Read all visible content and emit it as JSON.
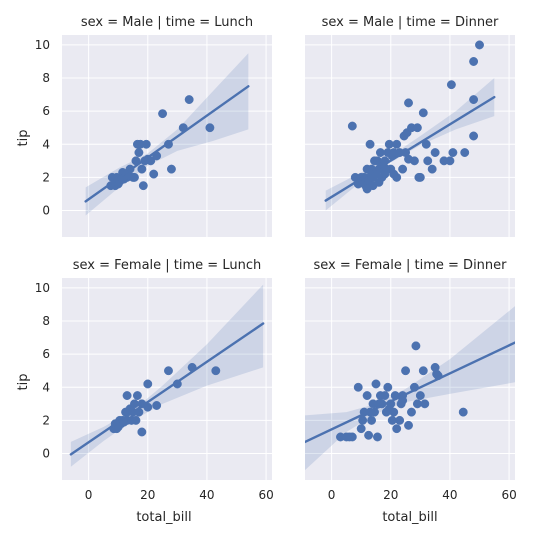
{
  "chart_data": {
    "type": "scatter",
    "layout": "facet-grid-2x2",
    "xlabel": "total_bill",
    "ylabel": "tip",
    "xlim": [
      -9,
      62
    ],
    "ylim": [
      -1.6,
      10.6
    ],
    "xticks": [
      0,
      20,
      40,
      60
    ],
    "yticks": [
      0,
      2,
      4,
      6,
      8,
      10
    ],
    "grid": true,
    "colors": {
      "points": "#4c72b0",
      "band": "#4c72b0",
      "background": "#eaeaf2"
    },
    "panels": [
      {
        "title": "sex = Male | time = Lunch",
        "regression": {
          "x": [
            -1,
            54
          ],
          "y": [
            0.55,
            7.5
          ]
        },
        "ci_band": [
          {
            "x": -1,
            "lo": -0.3,
            "hi": 1.4
          },
          {
            "x": 10,
            "lo": 1.35,
            "hi": 2.55
          },
          {
            "x": 20,
            "lo": 2.7,
            "hi": 3.45
          },
          {
            "x": 30,
            "lo": 3.6,
            "hi": 4.9
          },
          {
            "x": 42,
            "lo": 4.2,
            "hi": 7.2
          },
          {
            "x": 54,
            "lo": 4.9,
            "hi": 9.5
          }
        ],
        "points": [
          [
            7.5,
            1.5
          ],
          [
            8,
            2
          ],
          [
            9,
            1.5
          ],
          [
            9.5,
            2
          ],
          [
            10,
            1.6
          ],
          [
            10.5,
            1.75
          ],
          [
            11,
            2
          ],
          [
            11.5,
            2.3
          ],
          [
            12,
            1.9
          ],
          [
            12.5,
            2
          ],
          [
            13,
            2
          ],
          [
            13.5,
            2.1
          ],
          [
            14,
            2.5
          ],
          [
            15,
            2
          ],
          [
            15.5,
            2
          ],
          [
            16,
            3
          ],
          [
            16.5,
            4
          ],
          [
            17,
            3.5
          ],
          [
            17.5,
            4
          ],
          [
            18,
            2.5
          ],
          [
            18.5,
            1.5
          ],
          [
            19,
            3
          ],
          [
            19.5,
            4
          ],
          [
            20,
            3.1
          ],
          [
            21,
            3
          ],
          [
            22,
            2.2
          ],
          [
            23,
            3.3
          ],
          [
            25,
            5.85
          ],
          [
            27,
            4
          ],
          [
            28,
            2.5
          ],
          [
            32,
            5
          ],
          [
            34,
            6.7
          ],
          [
            41,
            5
          ]
        ]
      },
      {
        "title": "sex = Male | time = Dinner",
        "regression": {
          "x": [
            -2,
            55
          ],
          "y": [
            0.6,
            6.85
          ]
        },
        "ci_band": [
          {
            "x": -2,
            "lo": 0.0,
            "hi": 1.2
          },
          {
            "x": 10,
            "lo": 1.75,
            "hi": 2.3
          },
          {
            "x": 20,
            "lo": 2.9,
            "hi": 3.3
          },
          {
            "x": 30,
            "lo": 3.95,
            "hi": 4.5
          },
          {
            "x": 42,
            "lo": 4.9,
            "hi": 6.0
          },
          {
            "x": 55,
            "lo": 5.7,
            "hi": 8.0
          }
        ],
        "points": [
          [
            7,
            5.1
          ],
          [
            8,
            2
          ],
          [
            9,
            1.6
          ],
          [
            10,
            2
          ],
          [
            10.5,
            1.7
          ],
          [
            11,
            2
          ],
          [
            11.5,
            1.5
          ],
          [
            12,
            2.5
          ],
          [
            12.5,
            1.8
          ],
          [
            13,
            2
          ],
          [
            13.5,
            2.5
          ],
          [
            14,
            2
          ],
          [
            14.5,
            3
          ],
          [
            15,
            2.2
          ],
          [
            15.5,
            3
          ],
          [
            16,
            2.5
          ],
          [
            16.5,
            3.5
          ],
          [
            17,
            2
          ],
          [
            17.5,
            2.7
          ],
          [
            18,
            3
          ],
          [
            18.5,
            2.5
          ],
          [
            19,
            3.5
          ],
          [
            19.5,
            4
          ],
          [
            20,
            2.5
          ],
          [
            20.5,
            3.3
          ],
          [
            21,
            3.5
          ],
          [
            22,
            4
          ],
          [
            22,
            2
          ],
          [
            23,
            3.5
          ],
          [
            24,
            2.5
          ],
          [
            24.5,
            4.5
          ],
          [
            25,
            3.5
          ],
          [
            25.5,
            4.7
          ],
          [
            26,
            3.1
          ],
          [
            27,
            5
          ],
          [
            28,
            3
          ],
          [
            29,
            5
          ],
          [
            29.5,
            2
          ],
          [
            30,
            2
          ],
          [
            31,
            5.9
          ],
          [
            32,
            4
          ],
          [
            32.5,
            3
          ],
          [
            34,
            2.5
          ],
          [
            35,
            3.5
          ],
          [
            38,
            3
          ],
          [
            40,
            3
          ],
          [
            40.5,
            7.6
          ],
          [
            41,
            3.5
          ],
          [
            45,
            3.5
          ],
          [
            48,
            6.7
          ],
          [
            48,
            9
          ],
          [
            50,
            10
          ],
          [
            48,
            4.5
          ],
          [
            12,
            1.3
          ],
          [
            14,
            1.5
          ],
          [
            16,
            1.7
          ],
          [
            18,
            2.2
          ],
          [
            21,
            2.2
          ],
          [
            26,
            6.5
          ],
          [
            13,
            4
          ]
        ]
      },
      {
        "title": "sex = Female | time = Lunch",
        "regression": {
          "x": [
            -6,
            59
          ],
          "y": [
            -0.05,
            7.85
          ]
        },
        "ci_band": [
          {
            "x": -6,
            "lo": -0.8,
            "hi": 0.7
          },
          {
            "x": 5,
            "lo": 0.75,
            "hi": 1.6
          },
          {
            "x": 15,
            "lo": 2.0,
            "hi": 2.6
          },
          {
            "x": 25,
            "lo": 3.0,
            "hi": 4.1
          },
          {
            "x": 40,
            "lo": 4.1,
            "hi": 6.6
          },
          {
            "x": 59,
            "lo": 5.2,
            "hi": 10.2
          }
        ],
        "points": [
          [
            8.5,
            1.5
          ],
          [
            9,
            1.8
          ],
          [
            9.5,
            1.5
          ],
          [
            10,
            1.6
          ],
          [
            10.5,
            2
          ],
          [
            11,
            1.8
          ],
          [
            11.5,
            2
          ],
          [
            12,
            1.9
          ],
          [
            12.5,
            2.5
          ],
          [
            13,
            2
          ],
          [
            13,
            3.5
          ],
          [
            14,
            2.7
          ],
          [
            14.5,
            2
          ],
          [
            15,
            2.5
          ],
          [
            15.5,
            3
          ],
          [
            16,
            2
          ],
          [
            16.5,
            3.5
          ],
          [
            17,
            2.5
          ],
          [
            18,
            3
          ],
          [
            18,
            1.3
          ],
          [
            20,
            4.2
          ],
          [
            20,
            2.8
          ],
          [
            23,
            2.9
          ],
          [
            27,
            5
          ],
          [
            30,
            4.2
          ],
          [
            35,
            5.2
          ],
          [
            43,
            5
          ]
        ]
      },
      {
        "title": "sex = Female | time = Dinner",
        "regression": {
          "x": [
            -9,
            62
          ],
          "y": [
            0.7,
            6.7
          ]
        },
        "ci_band": [
          {
            "x": -9,
            "lo": -1.0,
            "hi": 2.3
          },
          {
            "x": 5,
            "lo": 1.3,
            "hi": 2.5
          },
          {
            "x": 15,
            "lo": 2.4,
            "hi": 3.0
          },
          {
            "x": 25,
            "lo": 3.1,
            "hi": 3.9
          },
          {
            "x": 40,
            "lo": 3.6,
            "hi": 5.7
          },
          {
            "x": 62,
            "lo": 4.3,
            "hi": 8.9
          }
        ],
        "points": [
          [
            3,
            1
          ],
          [
            5,
            1
          ],
          [
            6,
            1
          ],
          [
            7,
            1
          ],
          [
            9,
            4
          ],
          [
            10,
            1.5
          ],
          [
            10.5,
            2
          ],
          [
            11,
            2.5
          ],
          [
            12,
            3.5
          ],
          [
            12.5,
            1.1
          ],
          [
            13,
            2.5
          ],
          [
            13.5,
            2
          ],
          [
            14,
            3
          ],
          [
            14.5,
            2.5
          ],
          [
            15,
            4.2
          ],
          [
            15.5,
            1
          ],
          [
            16,
            3
          ],
          [
            16.5,
            3.5
          ],
          [
            17,
            3
          ],
          [
            18,
            3.5
          ],
          [
            18.5,
            2.5
          ],
          [
            19,
            4
          ],
          [
            20,
            3
          ],
          [
            20.5,
            2
          ],
          [
            21,
            2.5
          ],
          [
            21.5,
            3.5
          ],
          [
            22,
            1.5
          ],
          [
            23,
            2
          ],
          [
            23.5,
            3
          ],
          [
            24,
            3.2
          ],
          [
            25,
            5
          ],
          [
            26,
            1.7
          ],
          [
            27,
            2.5
          ],
          [
            28,
            4
          ],
          [
            28.5,
            6.5
          ],
          [
            29,
            3
          ],
          [
            30,
            3.5
          ],
          [
            31,
            5
          ],
          [
            31.5,
            3
          ],
          [
            35,
            5.2
          ],
          [
            35.5,
            4.8
          ],
          [
            36,
            4.7
          ],
          [
            44.5,
            2.5
          ],
          [
            24,
            3.5
          ],
          [
            19.5,
            2.7
          ]
        ]
      }
    ]
  }
}
